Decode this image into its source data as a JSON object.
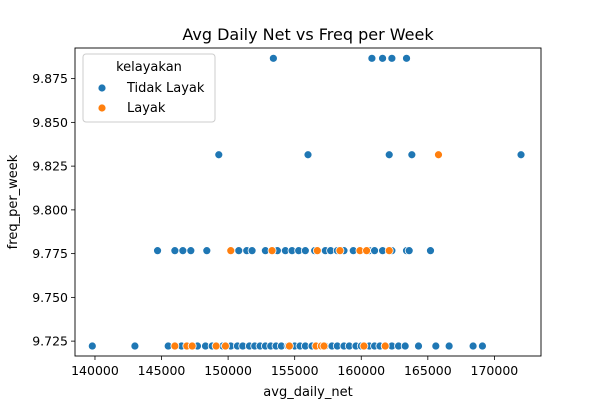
{
  "chart_data": {
    "type": "scatter",
    "title": "Avg Daily Net vs Freq per Week",
    "xlabel": "avg_daily_net",
    "ylabel": "freq_per_week",
    "xlim": [
      138500,
      173500
    ],
    "ylim": [
      9.7165,
      9.8925
    ],
    "xticks": [
      140000,
      145000,
      150000,
      155000,
      160000,
      165000,
      170000
    ],
    "xtick_labels": [
      "140000",
      "145000",
      "150000",
      "155000",
      "160000",
      "165000",
      "170000"
    ],
    "yticks": [
      9.725,
      9.75,
      9.775,
      9.8,
      9.825,
      9.85,
      9.875
    ],
    "ytick_labels": [
      "9.725",
      "9.750",
      "9.775",
      "9.800",
      "9.825",
      "9.850",
      "9.875"
    ],
    "grid": false,
    "legend": {
      "title": "kelayakan",
      "placement": "top-left",
      "entries": [
        "Tidak Layak",
        "Layak"
      ]
    },
    "series": [
      {
        "name": "Tidak Layak",
        "color": "#1f77b4",
        "points": [
          [
            139800,
            9.7222
          ],
          [
            143000,
            9.7222
          ],
          [
            145500,
            9.7222
          ],
          [
            146500,
            9.7222
          ],
          [
            147700,
            9.7222
          ],
          [
            148300,
            9.7222
          ],
          [
            148800,
            9.7222
          ],
          [
            149200,
            9.7222
          ],
          [
            149600,
            9.7222
          ],
          [
            150200,
            9.7222
          ],
          [
            150700,
            9.7222
          ],
          [
            151100,
            9.7222
          ],
          [
            151600,
            9.7222
          ],
          [
            152000,
            9.7222
          ],
          [
            152400,
            9.7222
          ],
          [
            152800,
            9.7222
          ],
          [
            153200,
            9.7222
          ],
          [
            153600,
            9.7222
          ],
          [
            154000,
            9.7222
          ],
          [
            154500,
            9.7222
          ],
          [
            155000,
            9.7222
          ],
          [
            155400,
            9.7222
          ],
          [
            155800,
            9.7222
          ],
          [
            156300,
            9.7222
          ],
          [
            156700,
            9.7222
          ],
          [
            157300,
            9.7222
          ],
          [
            157800,
            9.7222
          ],
          [
            158200,
            9.7222
          ],
          [
            158700,
            9.7222
          ],
          [
            159100,
            9.7222
          ],
          [
            159600,
            9.7222
          ],
          [
            160000,
            9.7222
          ],
          [
            160600,
            9.7222
          ],
          [
            161000,
            9.7222
          ],
          [
            161400,
            9.7222
          ],
          [
            161800,
            9.7222
          ],
          [
            162300,
            9.7222
          ],
          [
            162800,
            9.7222
          ],
          [
            163300,
            9.7222
          ],
          [
            164300,
            9.7222
          ],
          [
            165600,
            9.7222
          ],
          [
            166600,
            9.7222
          ],
          [
            168400,
            9.7222
          ],
          [
            169100,
            9.7222
          ],
          [
            144700,
            9.7767
          ],
          [
            146000,
            9.7767
          ],
          [
            146600,
            9.7767
          ],
          [
            147200,
            9.7767
          ],
          [
            148400,
            9.7767
          ],
          [
            150800,
            9.7767
          ],
          [
            151400,
            9.7767
          ],
          [
            151800,
            9.7767
          ],
          [
            152800,
            9.7767
          ],
          [
            153700,
            9.7767
          ],
          [
            154300,
            9.7767
          ],
          [
            154800,
            9.7767
          ],
          [
            155300,
            9.7767
          ],
          [
            155800,
            9.7767
          ],
          [
            156500,
            9.7767
          ],
          [
            157300,
            9.7767
          ],
          [
            157700,
            9.7767
          ],
          [
            158200,
            9.7767
          ],
          [
            158700,
            9.7767
          ],
          [
            159400,
            9.7767
          ],
          [
            160600,
            9.7767
          ],
          [
            161000,
            9.7767
          ],
          [
            161600,
            9.7767
          ],
          [
            162300,
            9.7767
          ],
          [
            163400,
            9.7767
          ],
          [
            163600,
            9.7767
          ],
          [
            165200,
            9.7767
          ],
          [
            149300,
            9.8315
          ],
          [
            156000,
            9.8315
          ],
          [
            162100,
            9.8315
          ],
          [
            163800,
            9.8315
          ],
          [
            172000,
            9.8315
          ],
          [
            153400,
            9.8866
          ],
          [
            160800,
            9.8866
          ],
          [
            161600,
            9.8866
          ],
          [
            162300,
            9.8866
          ],
          [
            163400,
            9.8866
          ]
        ]
      },
      {
        "name": "Layak",
        "color": "#ff7f0e",
        "points": [
          [
            146000,
            9.7222
          ],
          [
            146900,
            9.7222
          ],
          [
            147300,
            9.7222
          ],
          [
            149100,
            9.7222
          ],
          [
            149800,
            9.7222
          ],
          [
            154600,
            9.7222
          ],
          [
            156600,
            9.7222
          ],
          [
            157000,
            9.7222
          ],
          [
            157200,
            9.7222
          ],
          [
            160200,
            9.7222
          ],
          [
            161800,
            9.7222
          ],
          [
            150200,
            9.7767
          ],
          [
            153300,
            9.7767
          ],
          [
            156700,
            9.7767
          ],
          [
            158400,
            9.7767
          ],
          [
            159900,
            9.7767
          ],
          [
            160400,
            9.7767
          ],
          [
            162100,
            9.7767
          ],
          [
            165800,
            9.8315
          ]
        ]
      }
    ]
  }
}
